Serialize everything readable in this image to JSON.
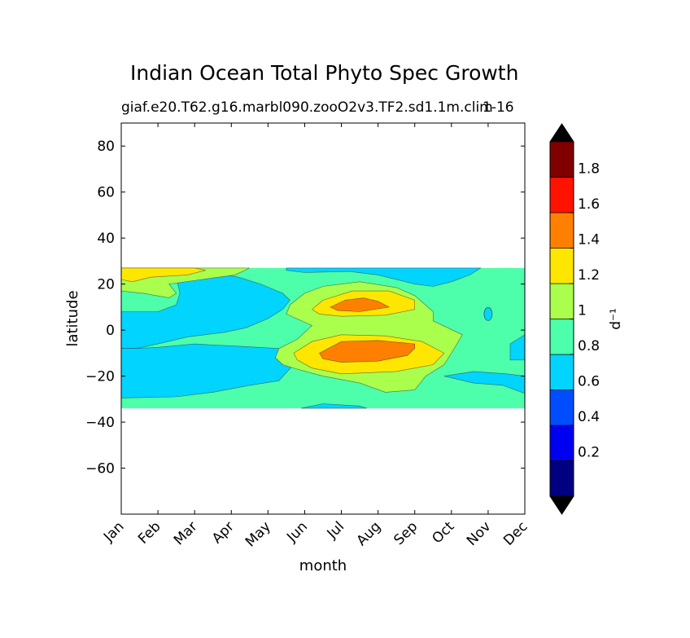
{
  "chart_data": {
    "type": "heatmap",
    "title": "Indian Ocean Total Phyto Spec Growth",
    "subtitle_left": "giaf.e20.T62.g16.marbl090.zooO2v3.TF2.sd1.1m.clim",
    "subtitle_right": "1-16",
    "xlabel": "month",
    "ylabel": "latitude",
    "x_categories": [
      "Jan",
      "Feb",
      "Mar",
      "Apr",
      "May",
      "Jun",
      "Jul",
      "Aug",
      "Sep",
      "Oct",
      "Nov",
      "Dec"
    ],
    "xlim": [
      1,
      12
    ],
    "ylim": [
      -80,
      90
    ],
    "y_ticks": [
      80,
      60,
      40,
      20,
      0,
      -20,
      -40,
      -60
    ],
    "y_tick_labels": [
      "80",
      "60",
      "40",
      "20",
      "0",
      "−20",
      "−40",
      "−60"
    ],
    "data_lat_range": [
      -34,
      27
    ],
    "colorbar": {
      "label": "d⁻¹",
      "extend": "both",
      "levels": [
        0,
        0.2,
        0.4,
        0.6,
        0.8,
        1.0,
        1.2,
        1.4,
        1.6,
        1.8,
        2.0
      ],
      "tick_labels": [
        "0.2",
        "0.4",
        "0.6",
        "0.8",
        "1",
        "1.2",
        "1.4",
        "1.6",
        "1.8"
      ],
      "colors": [
        "#000080",
        "#0000f1",
        "#004dff",
        "#00d4ff",
        "#4dffaa",
        "#aaff4d",
        "#ffe600",
        "#ff8000",
        "#ff1300",
        "#800000"
      ],
      "under_color": "#000000",
      "over_color": "#000000"
    },
    "regions": [
      {
        "name": "background-0.8-1.0",
        "value_band": [
          0.8,
          1.0
        ]
      },
      {
        "name": "west-blue-tongue",
        "value_band": [
          0.6,
          0.8
        ]
      },
      {
        "name": "south-blue-band",
        "value_band": [
          0.6,
          0.8
        ]
      },
      {
        "name": "north-blue-strip",
        "value_band": [
          0.6,
          0.8
        ]
      },
      {
        "name": "southeast-blue",
        "value_band": [
          0.6,
          0.8
        ]
      },
      {
        "name": "south-edge-blue",
        "value_band": [
          0.6,
          0.8
        ]
      },
      {
        "name": "east-blue",
        "value_band": [
          0.6,
          0.8
        ]
      },
      {
        "name": "summer-1.0-1.2",
        "value_band": [
          1.0,
          1.2
        ]
      },
      {
        "name": "northwest-1.0-1.2",
        "value_band": [
          1.0,
          1.2
        ]
      },
      {
        "name": "northwest-1.2-1.4",
        "value_band": [
          1.2,
          1.4
        ]
      },
      {
        "name": "south-1.2-1.4",
        "value_band": [
          1.2,
          1.4
        ]
      },
      {
        "name": "north-1.2-1.4",
        "value_band": [
          1.2,
          1.4
        ]
      },
      {
        "name": "south-1.4-1.6",
        "value_band": [
          1.4,
          1.6
        ]
      },
      {
        "name": "north-1.4-1.6",
        "value_band": [
          1.4,
          1.6
        ]
      }
    ]
  }
}
